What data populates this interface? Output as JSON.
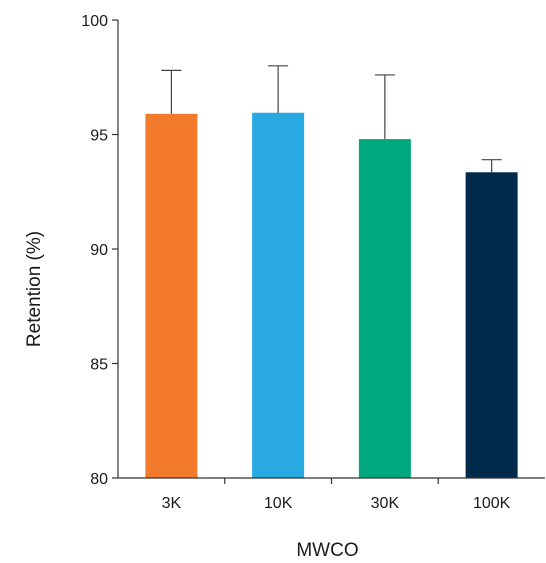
{
  "chart_data": {
    "type": "bar",
    "categories": [
      "3K",
      "10K",
      "30K",
      "100K"
    ],
    "values": [
      95.9,
      95.95,
      94.8,
      93.35
    ],
    "errors": [
      1.9,
      2.05,
      2.8,
      0.55
    ],
    "colors": [
      "#F47A2B",
      "#29A9E1",
      "#00A87E",
      "#002A4A"
    ],
    "xlabel": "MWCO",
    "ylabel": "Retention (%)",
    "ylim": [
      80,
      100
    ],
    "yticks": [
      80,
      85,
      90,
      95,
      100
    ],
    "grid": false,
    "legend": "none"
  }
}
